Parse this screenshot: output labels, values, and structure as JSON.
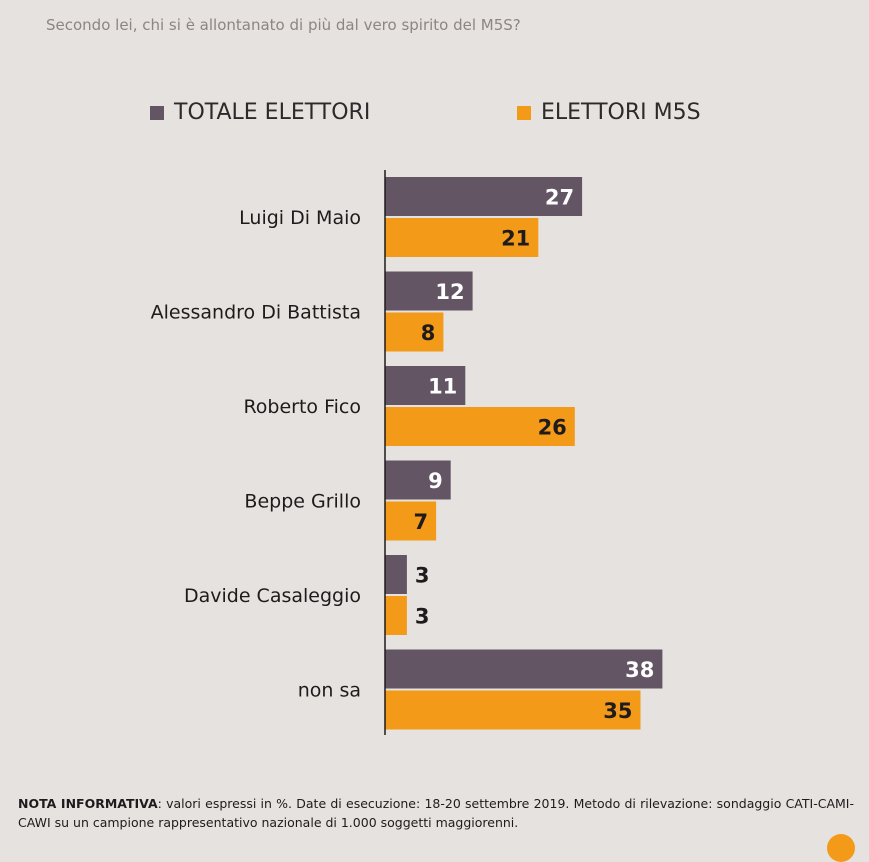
{
  "question": "Secondo lei, chi si è allontanato di più dal vero spirito del M5S?",
  "chart_data": {
    "type": "bar",
    "orientation": "horizontal",
    "categories": [
      "Luigi Di Maio",
      "Alessandro Di Battista",
      "Roberto Fico",
      "Beppe Grillo",
      "Davide Casaleggio",
      "non sa"
    ],
    "series": [
      {
        "name": "TOTALE ELETTORI",
        "color": "#645564",
        "values": [
          27,
          12,
          11,
          9,
          3,
          38
        ]
      },
      {
        "name": "ELETTORI M5S",
        "color": "#f39a19",
        "values": [
          21,
          8,
          26,
          7,
          3,
          35
        ]
      }
    ],
    "xlim": [
      0,
      60
    ],
    "value_labels": true,
    "legend_position": "top",
    "grid": false
  },
  "note": {
    "bold": "NOTA INFORMATIVA",
    "text": ": valori espressi in %. Date di esecuzione: 18-20 settembre 2019. Metodo di rilevazione: sondaggio CATI-CAMI-CAWI su un campione rappresentativo nazionale di 1.000 soggetti maggiorenni."
  }
}
